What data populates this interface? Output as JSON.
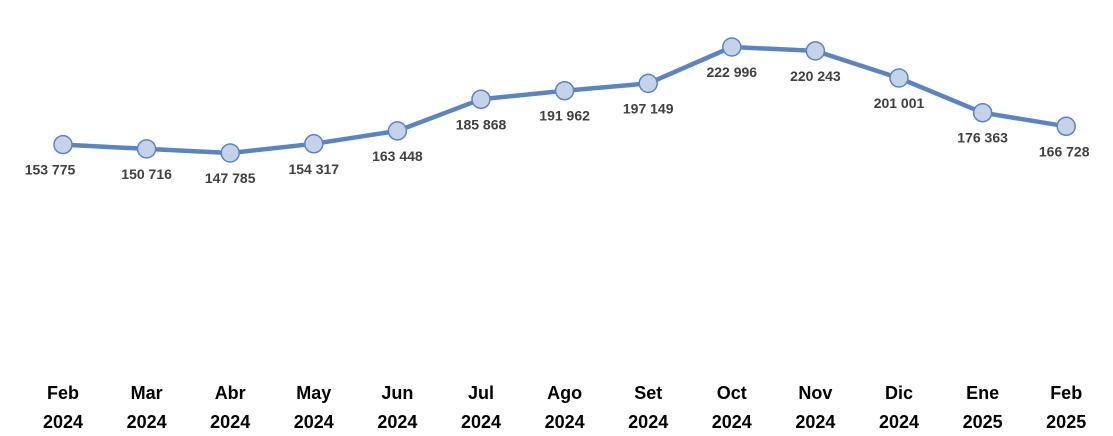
{
  "chart_data": {
    "type": "line",
    "title": "",
    "xlabel": "",
    "ylabel": "",
    "categories": [
      [
        "Feb",
        "2024"
      ],
      [
        "Mar",
        "2024"
      ],
      [
        "Abr",
        "2024"
      ],
      [
        "May",
        "2024"
      ],
      [
        "Jun",
        "2024"
      ],
      [
        "Jul",
        "2024"
      ],
      [
        "Ago",
        "2024"
      ],
      [
        "Set",
        "2024"
      ],
      [
        "Oct",
        "2024"
      ],
      [
        "Nov",
        "2024"
      ],
      [
        "Dic",
        "2024"
      ],
      [
        "Ene",
        "2025"
      ],
      [
        "Feb",
        "2025"
      ]
    ],
    "series": [
      {
        "values": [
          153775,
          150716,
          147785,
          154317,
          163448,
          185868,
          191962,
          197149,
          222996,
          220243,
          201001,
          176363,
          166728
        ],
        "labels": [
          "153 775",
          "150 716",
          "147 785",
          "154 317",
          "163 448",
          "185 868",
          "191 962",
          "197 149",
          "222 996",
          "220 243",
          "201 001",
          "176 363",
          "166 728"
        ]
      }
    ],
    "grid": false,
    "legend": "none",
    "colors": {
      "line": "#5b85c0",
      "marker_fill": "#c5d3e9",
      "marker_stroke": "#5b85c0",
      "data_label": "#404040",
      "tick_label": "#000000"
    }
  }
}
